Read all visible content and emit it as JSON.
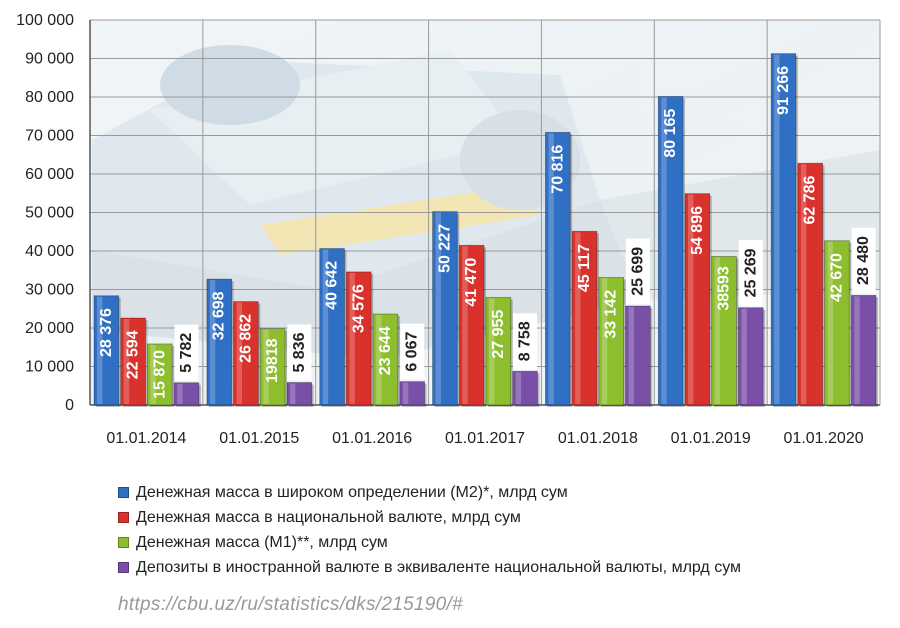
{
  "chart_data": {
    "type": "bar",
    "categories": [
      "01.01.2014",
      "01.01.2015",
      "01.01.2016",
      "01.01.2017",
      "01.01.2018",
      "01.01.2019",
      "01.01.2020"
    ],
    "ylim": [
      0,
      100000
    ],
    "yticks": [
      "0",
      "10 000",
      "20 000",
      "30 000",
      "40 000",
      "50 000",
      "60 000",
      "70 000",
      "80 000",
      "90 000",
      "100 000"
    ],
    "grid": true,
    "legend_position": "bottom",
    "series": [
      {
        "name": "Денежная масса в широком определении (М2)*, млрд сум",
        "color": "#2F6FC4",
        "values": [
          28376,
          32698,
          40642,
          50227,
          70816,
          80165,
          91266
        ],
        "labels": [
          "28 376",
          "32 698",
          "40 642",
          "50 227",
          "70 816",
          "80 165",
          "91 266"
        ]
      },
      {
        "name": "Денежная масса в национальной валюте, млрд сум",
        "color": "#D9312C",
        "values": [
          22594,
          26862,
          34576,
          41470,
          45117,
          54896,
          62786
        ],
        "labels": [
          "22 594",
          "26 862",
          "34 576",
          "41 470",
          "45 117",
          "54 896",
          "62 786"
        ]
      },
      {
        "name": "Денежная масса (М1)**, млрд сум",
        "color": "#8DBE2E",
        "values": [
          15870,
          19818,
          23644,
          27955,
          33142,
          38593,
          42670
        ],
        "labels": [
          "15 870",
          "19818",
          "23 644",
          "27 955",
          "33 142",
          "38593",
          "42 670"
        ]
      },
      {
        "name": "Депозиты в иностранной валюте в эквиваленте национальной валюты, млрд сум",
        "color": "#7A4FA8",
        "values": [
          5782,
          5836,
          6067,
          8758,
          25699,
          25269,
          28480
        ],
        "labels": [
          "5 782",
          "5 836",
          "6 067",
          "8 758",
          "25 699",
          "25 269",
          "28 480"
        ]
      }
    ]
  },
  "source_url": "https://cbu.uz/ru/statistics/dks/215190/#"
}
